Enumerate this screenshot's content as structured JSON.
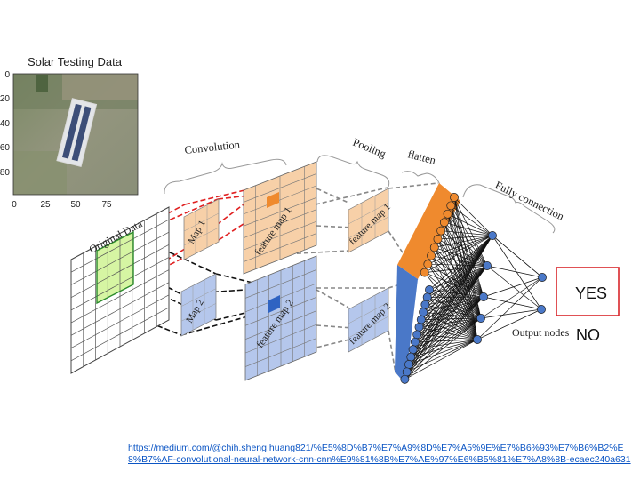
{
  "image_panel": {
    "title": "Solar Testing Data",
    "y_ticks": [
      "0",
      "20",
      "40",
      "60",
      "80"
    ],
    "x_ticks": [
      "0",
      "25",
      "50",
      "75"
    ]
  },
  "labels": {
    "convolution": "Convolution",
    "pooling": "Pooling",
    "flatten": "flatten",
    "fully_connection": "Fully connection",
    "original_data": "Original Data",
    "map1": "Map 1",
    "map2": "Map 2",
    "feature_map1": "feature map 1",
    "feature_map2": "feature map 2",
    "pooled_map1": "feature map 1",
    "pooled_map2": "feature map 2",
    "output_nodes": "Output nodes"
  },
  "outputs": {
    "yes": "YES",
    "no": "NO"
  },
  "source_url": "https://medium.com/@chih.sheng.huang821/%E5%8D%B7%E7%A9%8D%E7%A5%9E%E7%B6%93%E7%B6%B2%E8%B7%AF-convolutional-neural-network-cnn-cnn%E9%81%8B%E7%AE%97%E6%B5%81%E7%A8%8B-ecaec240a631",
  "colors": {
    "orange": "#f7d0a8",
    "orange_dark": "#ef8a2e",
    "blue": "#b5c7ec",
    "blue_dark": "#4a78c8",
    "green": "#d6f5a3",
    "red_box": "#d9262b",
    "link": "#0b55c4"
  }
}
